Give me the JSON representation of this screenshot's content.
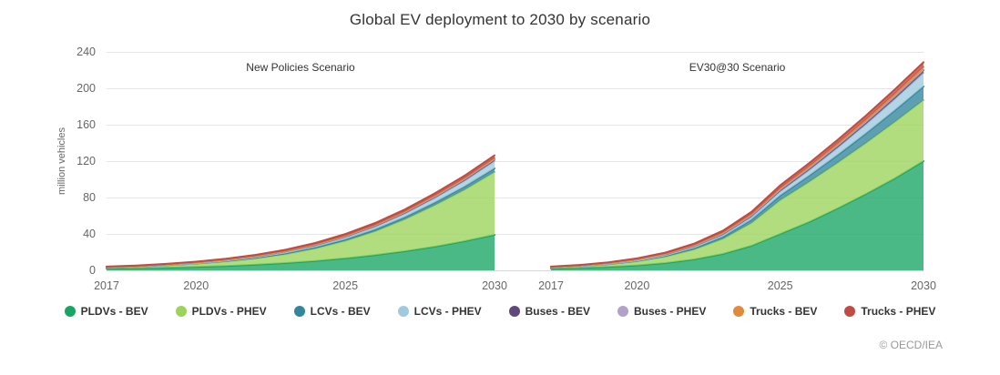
{
  "footer": {
    "copyright": "© OECD/IEA"
  },
  "colors": {
    "background": "#ffffff",
    "grid_line": "#e6e6e6",
    "axis_line": "#ccd6eb",
    "tick_text": "#666666",
    "title_text": "#333333",
    "caption_text": "#333333",
    "legend_text": "#333333",
    "footer_text": "#999999"
  },
  "chart_data": {
    "type": "area",
    "stacked": true,
    "title": "Global EV deployment to 2030 by scenario",
    "xlabel": "",
    "ylabel": "million vehicles",
    "ylim": [
      0,
      240
    ],
    "yticks": [
      0,
      40,
      80,
      120,
      160,
      200,
      240
    ],
    "grid": true,
    "legend_position": "bottom",
    "x": [
      2017,
      2018,
      2019,
      2020,
      2021,
      2022,
      2023,
      2024,
      2025,
      2026,
      2027,
      2028,
      2029,
      2030
    ],
    "xticks": [
      2017,
      2020,
      2025,
      2030
    ],
    "series": [
      {
        "name": "PLDVs - BEV",
        "color": "#18a564"
      },
      {
        "name": "PLDVs - PHEV",
        "color": "#9cd45a"
      },
      {
        "name": "LCVs - BEV",
        "color": "#31859c"
      },
      {
        "name": "LCVs - PHEV",
        "color": "#9fc9dd"
      },
      {
        "name": "Buses - BEV",
        "color": "#5f497a"
      },
      {
        "name": "Buses - PHEV",
        "color": "#b3a2c7"
      },
      {
        "name": "Trucks - BEV",
        "color": "#e08a3c"
      },
      {
        "name": "Trucks - PHEV",
        "color": "#bf4b44"
      }
    ],
    "panels": [
      {
        "label": "New Policies Scenario",
        "values": [
          [
            1.9,
            2.3,
            2.9,
            3.7,
            4.8,
            6.2,
            8.0,
            10.3,
            13.2,
            16.8,
            21.0,
            26.0,
            32.0,
            39.0
          ],
          [
            1.2,
            1.7,
            2.4,
            3.4,
            4.8,
            6.8,
            9.6,
            13.6,
            19.0,
            26.0,
            35.0,
            45.5,
            56.5,
            69.0
          ],
          [
            0.15,
            0.2,
            0.3,
            0.45,
            0.6,
            0.8,
            1.05,
            1.35,
            1.7,
            2.1,
            2.5,
            3.0,
            3.5,
            4.0
          ],
          [
            0.1,
            0.15,
            0.25,
            0.4,
            0.6,
            0.85,
            1.2,
            1.65,
            2.2,
            2.9,
            3.8,
            4.9,
            6.3,
            8.0
          ],
          [
            0.35,
            0.45,
            0.55,
            0.65,
            0.75,
            0.85,
            0.95,
            1.05,
            1.15,
            1.25,
            1.4,
            1.5,
            1.65,
            1.8
          ],
          [
            0.05,
            0.06,
            0.08,
            0.1,
            0.13,
            0.16,
            0.2,
            0.24,
            0.28,
            0.32,
            0.36,
            0.4,
            0.45,
            0.5
          ],
          [
            0.03,
            0.05,
            0.08,
            0.12,
            0.17,
            0.23,
            0.3,
            0.38,
            0.47,
            0.57,
            0.68,
            0.78,
            0.9,
            1.0
          ],
          [
            0.3,
            0.4,
            0.55,
            0.7,
            0.9,
            1.1,
            1.35,
            1.6,
            1.9,
            2.1,
            2.3,
            2.5,
            2.75,
            3.0
          ]
        ]
      },
      {
        "label": "EV30@30 Scenario",
        "values": [
          [
            1.9,
            2.6,
            3.7,
            5.4,
            8.0,
            12.0,
            18.0,
            27.0,
            40.0,
            53.0,
            68.0,
            84.0,
            101.0,
            120.0
          ],
          [
            1.2,
            1.8,
            2.8,
            4.4,
            6.9,
            10.8,
            16.5,
            25.0,
            37.0,
            44.0,
            50.0,
            56.0,
            62.0,
            67.0
          ],
          [
            0.15,
            0.25,
            0.4,
            0.65,
            1.0,
            1.6,
            2.4,
            3.6,
            5.2,
            6.8,
            8.6,
            10.6,
            12.7,
            15.0
          ],
          [
            0.1,
            0.17,
            0.3,
            0.5,
            0.8,
            1.3,
            2.0,
            3.0,
            4.4,
            6.0,
            7.9,
            10.0,
            12.4,
            15.0
          ],
          [
            0.35,
            0.5,
            0.65,
            0.85,
            1.05,
            1.3,
            1.55,
            1.8,
            2.0,
            2.2,
            2.4,
            2.6,
            2.8,
            3.0
          ],
          [
            0.05,
            0.07,
            0.1,
            0.14,
            0.18,
            0.23,
            0.28,
            0.34,
            0.4,
            0.45,
            0.49,
            0.53,
            0.57,
            0.6
          ],
          [
            0.05,
            0.1,
            0.17,
            0.27,
            0.4,
            0.55,
            0.75,
            1.0,
            1.3,
            1.6,
            1.9,
            2.2,
            2.6,
            3.0
          ],
          [
            0.3,
            0.45,
            0.65,
            0.9,
            1.2,
            1.6,
            2.1,
            2.6,
            3.1,
            3.5,
            3.9,
            4.3,
            4.7,
            5.0
          ]
        ]
      }
    ]
  }
}
